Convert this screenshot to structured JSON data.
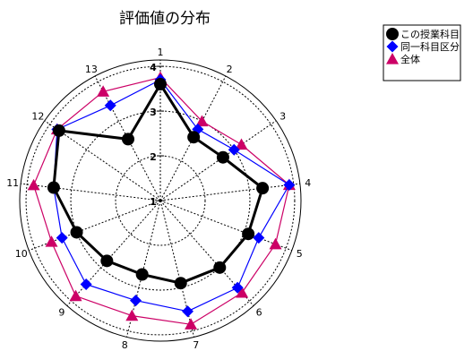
{
  "chart_data": {
    "type": "radar",
    "title": "評価値の分布",
    "axes": [
      "1",
      "2",
      "3",
      "4",
      "5",
      "6",
      "7",
      "8",
      "9",
      "10",
      "11",
      "12",
      "13"
    ],
    "rlim": [
      1,
      4
    ],
    "ticks": [
      1,
      2,
      3,
      4
    ],
    "tick_labels": [
      "1",
      "2",
      "3",
      "4"
    ],
    "grid": true,
    "legend_position": "top-right",
    "series": [
      {
        "name": "この授業科目",
        "color": "#000000",
        "marker": "circle",
        "values": [
          3.6,
          2.6,
          2.7,
          3.3,
          3.1,
          3.0,
          2.9,
          2.7,
          2.8,
          3.0,
          3.4,
          3.75,
          2.55
        ]
      },
      {
        "name": "同一科目区分",
        "color": "#0000ff",
        "marker": "diamond",
        "values": [
          3.7,
          2.8,
          3.0,
          3.9,
          3.35,
          3.6,
          3.55,
          3.3,
          3.5,
          3.35,
          3.4,
          3.8,
          3.4
        ]
      },
      {
        "name": "全体",
        "color": "#cc0066",
        "marker": "triangle",
        "values": [
          3.75,
          3.0,
          3.2,
          3.9,
          3.75,
          3.75,
          3.85,
          3.65,
          3.85,
          3.6,
          3.85,
          3.8,
          3.75
        ]
      }
    ]
  }
}
